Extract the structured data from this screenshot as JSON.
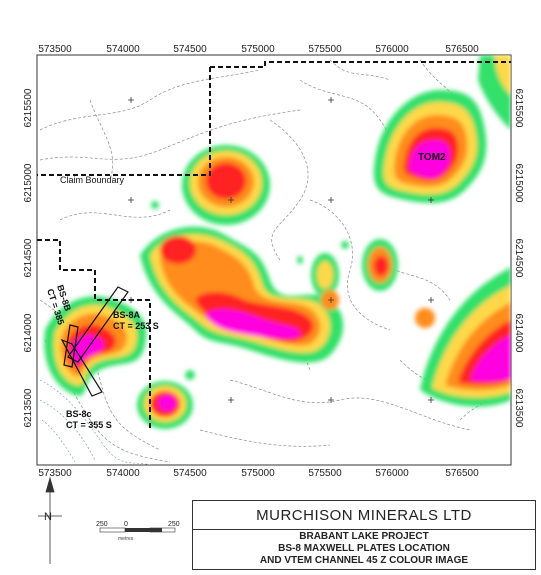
{
  "map": {
    "x_ticks": [
      "573500",
      "574000",
      "574500",
      "575000",
      "575500",
      "576000",
      "576500"
    ],
    "y_ticks_left": [
      "6215500",
      "6215000",
      "6214500",
      "6214000",
      "6213500"
    ],
    "y_ticks_right": [
      "6215500",
      "6215000",
      "6214500",
      "6214000",
      "6213500"
    ],
    "labels": {
      "claim_boundary": "Claim Boundary",
      "tom2": "TOM2",
      "bs8b_name": "BS-8B",
      "bs8b_ct": "CT = 385",
      "bs8a_name": "BS-8A",
      "bs8a_ct": "CT = 253 S",
      "bs8c_name": "BS-8c",
      "bs8c_ct": "CT = 355 S"
    },
    "colors": {
      "magenta": "#ff00e0",
      "pink": "#ff66cc",
      "red": "#ff2020",
      "orange": "#ff8c1a",
      "yellow": "#ffd84a",
      "green": "#33e06a"
    }
  },
  "legend": {
    "north_letter": "N",
    "scale_labels": [
      "250",
      "0",
      "250"
    ],
    "scale_units": "metres"
  },
  "title_block": {
    "company": "MURCHISON MINERALS LTD",
    "line1": "BRABANT LAKE PROJECT",
    "line2": "BS-8 MAXWELL PLATES LOCATION",
    "line3": "AND VTEM CHANNEL 45 Z COLOUR IMAGE"
  }
}
